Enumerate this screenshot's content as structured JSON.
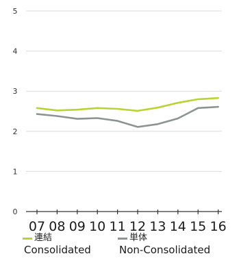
{
  "chart_data": {
    "type": "line",
    "title": "",
    "xlabel": "",
    "ylabel": "",
    "categories": [
      "07",
      "08",
      "09",
      "10",
      "11",
      "12",
      "13",
      "14",
      "15",
      "16"
    ],
    "ylim": [
      0,
      5
    ],
    "yticks": [
      "0",
      "1",
      "2",
      "3",
      "4",
      "5"
    ],
    "grid": "horizontal",
    "legend_position": "bottom",
    "series": [
      {
        "name_jp": "連結",
        "name": "Consolidated",
        "color": "#b8d431",
        "values": [
          2.58,
          2.52,
          2.54,
          2.58,
          2.56,
          2.51,
          2.59,
          2.71,
          2.8,
          2.83
        ]
      },
      {
        "name_jp": "単体",
        "name": "Non-Consolidated",
        "color": "#8c9493",
        "values": [
          2.43,
          2.38,
          2.31,
          2.33,
          2.26,
          2.11,
          2.18,
          2.32,
          2.58,
          2.61
        ]
      }
    ]
  }
}
